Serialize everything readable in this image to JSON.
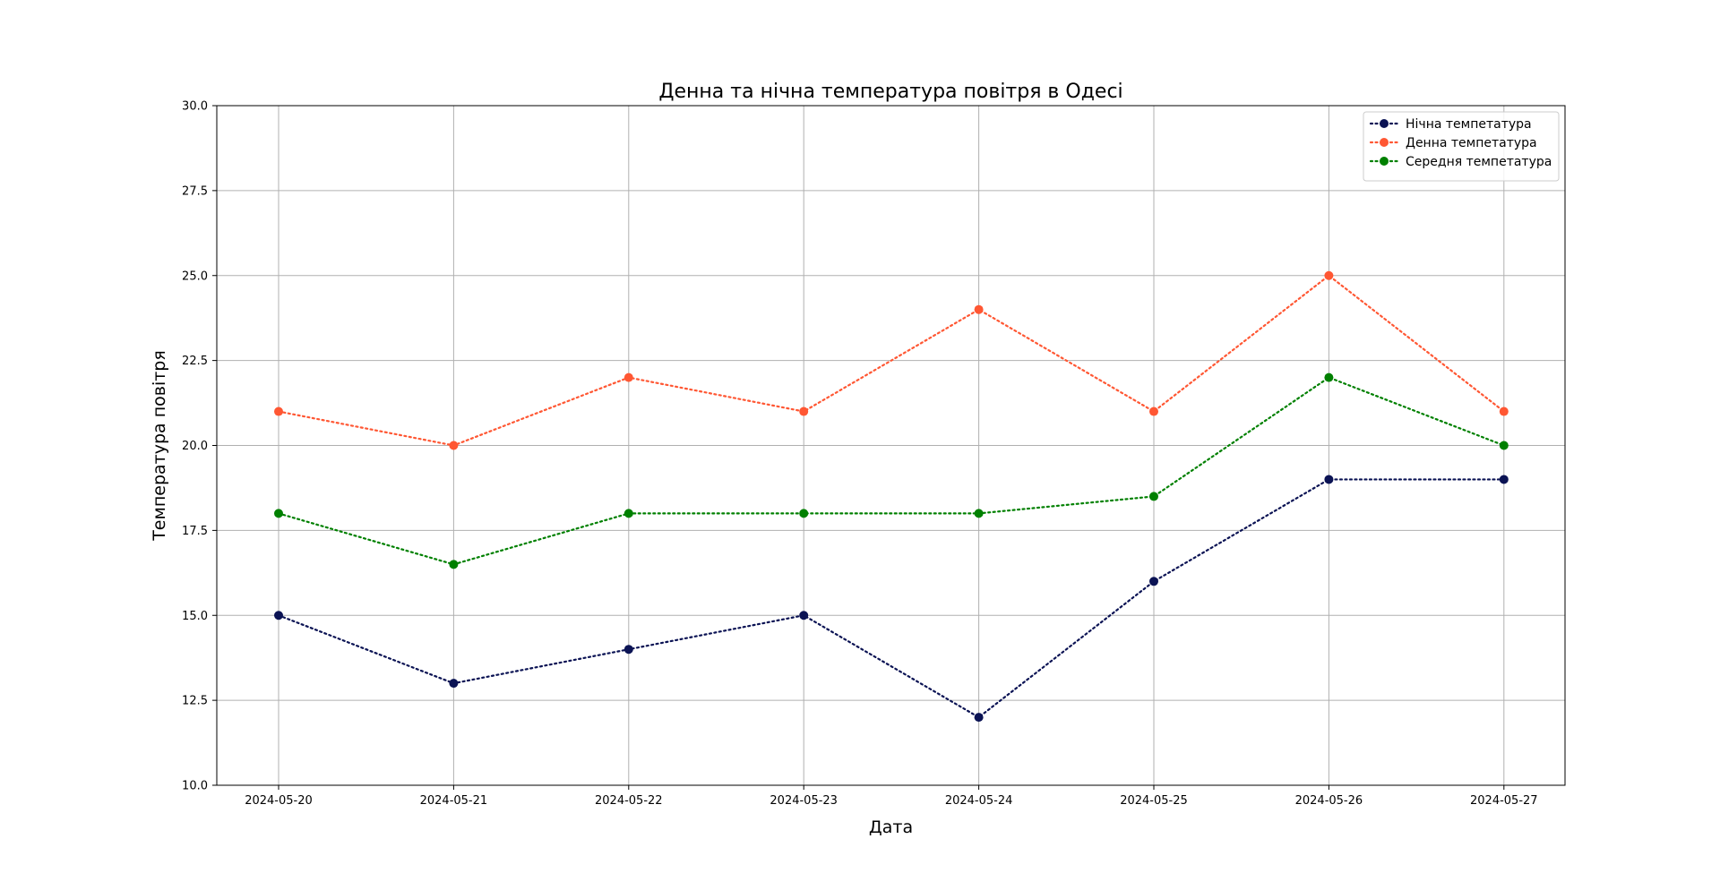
{
  "chart_data": {
    "type": "line",
    "title": "Денна та нічна температура повітря в Одесі",
    "xlabel": "Дата",
    "ylabel": "Температура повітря",
    "x": [
      "2024-05-20",
      "2024-05-21",
      "2024-05-22",
      "2024-05-23",
      "2024-05-24",
      "2024-05-25",
      "2024-05-26",
      "2024-05-27"
    ],
    "ylim": [
      10,
      30
    ],
    "yticks": [
      "10.0",
      "12.5",
      "15.0",
      "17.5",
      "20.0",
      "22.5",
      "25.0",
      "27.5",
      "30.0"
    ],
    "grid": true,
    "legend_position": "top-right",
    "line_style": "dotted",
    "markers": "circle",
    "series": [
      {
        "name": "Нічна темпетатура",
        "color": "#0b1354",
        "values": [
          15,
          13,
          14,
          15,
          12,
          16,
          19,
          19
        ]
      },
      {
        "name": "Денна темпетатура",
        "color": "#ff5733",
        "values": [
          21,
          20,
          22,
          21,
          24,
          21,
          25,
          21
        ]
      },
      {
        "name": "Середня темпетатура",
        "color": "#008000",
        "values": [
          18,
          16.5,
          18,
          18,
          18,
          18.5,
          22,
          20
        ]
      }
    ]
  }
}
